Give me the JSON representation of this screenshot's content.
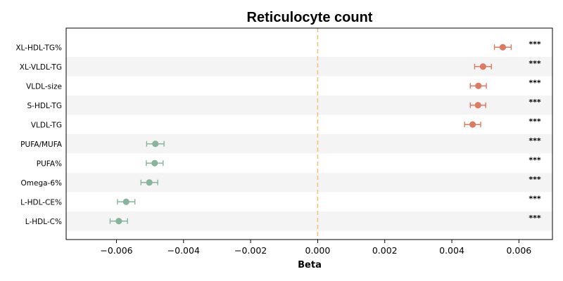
{
  "chart_data": {
    "type": "scatter",
    "title": "Reticulocyte count",
    "xlabel": "Beta",
    "ylabel": "",
    "xlim": [
      -0.0075,
      0.007
    ],
    "xticks": [
      -0.006,
      -0.004,
      -0.002,
      0.0,
      0.002,
      0.004,
      0.006
    ],
    "xtick_labels": [
      "−0.006",
      "−0.004",
      "−0.002",
      "0.000",
      "0.002",
      "0.004",
      "0.006"
    ],
    "reference_line": 0,
    "grid": false,
    "categories": [
      "XL-HDL-TG%",
      "XL-VLDL-TG",
      "VLDL-size",
      "S-HDL-TG",
      "VLDL-TG",
      "PUFA/MUFA",
      "PUFA%",
      "Omega-6%",
      "L-HDL-CE%",
      "L-HDL-C%"
    ],
    "beta": [
      0.00552,
      0.00493,
      0.00479,
      0.00478,
      0.00462,
      -0.00484,
      -0.00486,
      -0.00502,
      -0.00571,
      -0.00593
    ],
    "ci_low": [
      0.00527,
      0.00468,
      0.00455,
      0.00455,
      0.00438,
      -0.0051,
      -0.00511,
      -0.00527,
      -0.00597,
      -0.00619
    ],
    "ci_high": [
      0.00577,
      0.00518,
      0.00503,
      0.00501,
      0.00486,
      -0.00458,
      -0.00461,
      -0.00477,
      -0.00545,
      -0.00567
    ],
    "significance": [
      "***",
      "***",
      "***",
      "***",
      "***",
      "***",
      "***",
      "***",
      "***",
      "***"
    ],
    "colors": {
      "positive": "#DC7B62",
      "negative": "#86B49C",
      "reference_line": "#F2C27B",
      "band": "#F4F4F4"
    }
  }
}
